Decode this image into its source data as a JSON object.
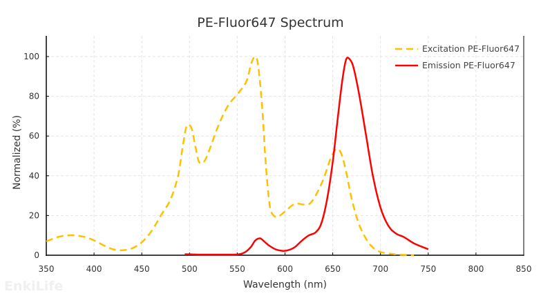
{
  "chart_data": {
    "type": "line",
    "title": "PE-Fluor647  Spectrum",
    "xlabel": "Wavelength (nm)",
    "ylabel": "Normalized (%)",
    "xlim": [
      350,
      850
    ],
    "ylim": [
      0,
      110
    ],
    "xticks": [
      350,
      400,
      450,
      500,
      550,
      600,
      650,
      700,
      750,
      800,
      850
    ],
    "yticks": [
      0,
      20,
      40,
      60,
      80,
      100
    ],
    "grid": true,
    "legend_position": "top-right",
    "series": [
      {
        "name": "Excitation PE-Fluor647",
        "color": "#FFC000",
        "style": "dashed",
        "points": [
          [
            350,
            7
          ],
          [
            365,
            9.5
          ],
          [
            380,
            10
          ],
          [
            395,
            8.5
          ],
          [
            410,
            5
          ],
          [
            420,
            3
          ],
          [
            430,
            2.5
          ],
          [
            440,
            3.5
          ],
          [
            450,
            6.5
          ],
          [
            460,
            12
          ],
          [
            470,
            20
          ],
          [
            480,
            28
          ],
          [
            488,
            40
          ],
          [
            493,
            55
          ],
          [
            497,
            65
          ],
          [
            502,
            64
          ],
          [
            506,
            55
          ],
          [
            510,
            47
          ],
          [
            515,
            47
          ],
          [
            520,
            52
          ],
          [
            530,
            65
          ],
          [
            540,
            75
          ],
          [
            550,
            81
          ],
          [
            555,
            84
          ],
          [
            560,
            88
          ],
          [
            565,
            97
          ],
          [
            569,
            100
          ],
          [
            572,
            95
          ],
          [
            576,
            75
          ],
          [
            580,
            45
          ],
          [
            584,
            25
          ],
          [
            588,
            20
          ],
          [
            593,
            19.5
          ],
          [
            600,
            22
          ],
          [
            610,
            25.8
          ],
          [
            620,
            25.5
          ],
          [
            626,
            26
          ],
          [
            632,
            30
          ],
          [
            640,
            38
          ],
          [
            648,
            49
          ],
          [
            654,
            53.5
          ],
          [
            659,
            51
          ],
          [
            664,
            42
          ],
          [
            670,
            28
          ],
          [
            678,
            15
          ],
          [
            688,
            6
          ],
          [
            698,
            2
          ],
          [
            710,
            0.8
          ],
          [
            720,
            0.3
          ],
          [
            735,
            0
          ]
        ]
      },
      {
        "name": "Emission PE-Fluor647",
        "color": "#FF0000",
        "style": "solid",
        "points": [
          [
            495,
            0.5
          ],
          [
            510,
            0.3
          ],
          [
            530,
            0.3
          ],
          [
            550,
            0.4
          ],
          [
            558,
            1.5
          ],
          [
            564,
            4
          ],
          [
            569,
            7.5
          ],
          [
            574,
            8.5
          ],
          [
            578,
            7
          ],
          [
            583,
            5
          ],
          [
            590,
            3
          ],
          [
            597,
            2.2
          ],
          [
            603,
            2.5
          ],
          [
            610,
            4
          ],
          [
            618,
            7.5
          ],
          [
            625,
            10
          ],
          [
            632,
            11.5
          ],
          [
            638,
            16
          ],
          [
            644,
            28
          ],
          [
            650,
            47
          ],
          [
            655,
            68
          ],
          [
            660,
            88
          ],
          [
            664,
            98.5
          ],
          [
            668,
            98.5
          ],
          [
            672,
            94
          ],
          [
            678,
            80
          ],
          [
            685,
            60
          ],
          [
            692,
            40
          ],
          [
            700,
            24
          ],
          [
            708,
            15
          ],
          [
            716,
            11
          ],
          [
            725,
            9
          ],
          [
            735,
            6
          ],
          [
            750,
            3
          ]
        ]
      }
    ]
  },
  "watermark": "EnkiLife"
}
